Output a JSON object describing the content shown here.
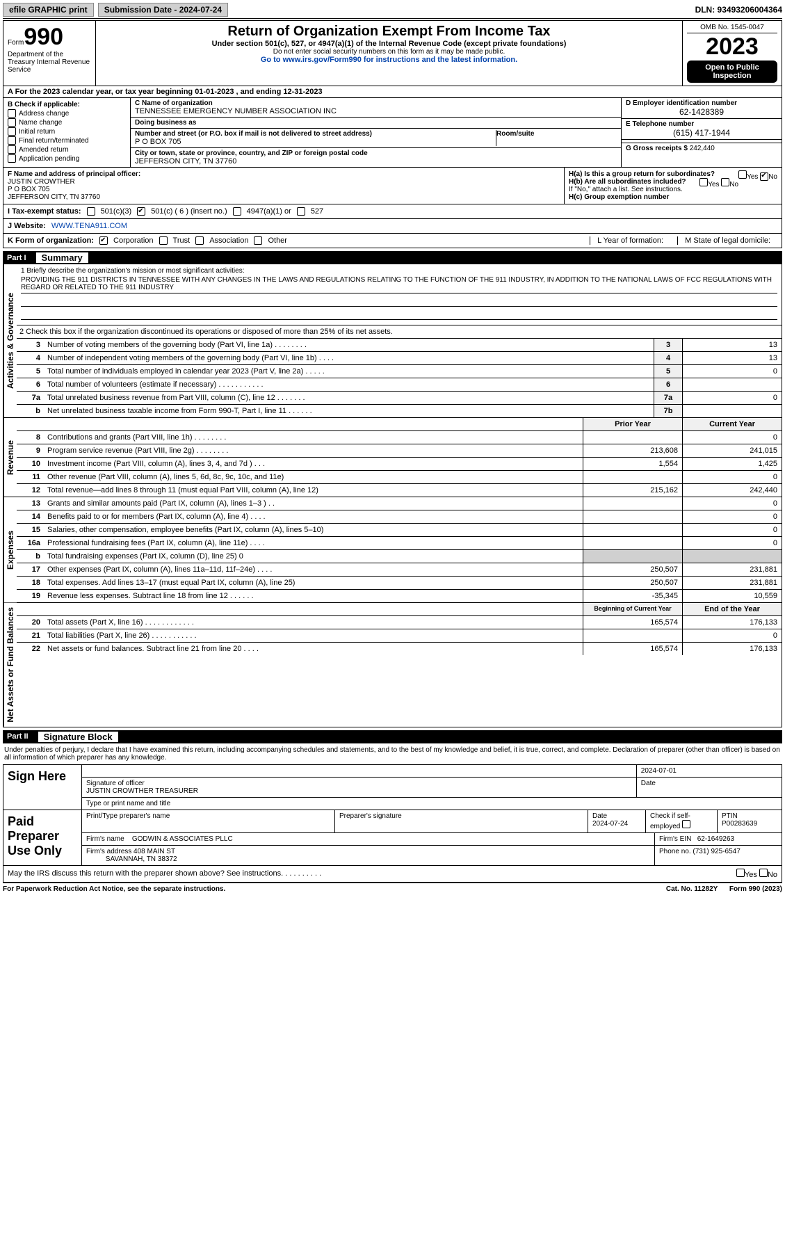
{
  "topbar": {
    "efile": "efile GRAPHIC print",
    "submission_label": "Submission Date - 2024-07-24",
    "dln": "DLN: 93493206004364"
  },
  "header": {
    "form_prefix": "Form",
    "form_number": "990",
    "title": "Return of Organization Exempt From Income Tax",
    "subtitle": "Under section 501(c), 527, or 4947(a)(1) of the Internal Revenue Code (except private foundations)",
    "note": "Do not enter social security numbers on this form as it may be made public.",
    "goto": "Go to www.irs.gov/Form990 for instructions and the latest information.",
    "omb": "OMB No. 1545-0047",
    "year": "2023",
    "open": "Open to Public Inspection",
    "dept": "Department of the Treasury Internal Revenue Service"
  },
  "lineA": "A  For the 2023 calendar year, or tax year beginning 01-01-2023   , and ending 12-31-2023",
  "sectionB": {
    "label": "B Check if applicable:",
    "opts": [
      "Address change",
      "Name change",
      "Initial return",
      "Final return/terminated",
      "Amended return",
      "Application pending"
    ]
  },
  "sectionC": {
    "name_label": "C Name of organization",
    "name": "TENNESSEE EMERGENCY NUMBER ASSOCIATION INC",
    "dba_label": "Doing business as",
    "street_label": "Number and street (or P.O. box if mail is not delivered to street address)",
    "room_label": "Room/suite",
    "street": "P O BOX 705",
    "city_label": "City or town, state or province, country, and ZIP or foreign postal code",
    "city": "JEFFERSON CITY, TN  37760"
  },
  "sectionD": {
    "ein_label": "D Employer identification number",
    "ein": "62-1428389",
    "tel_label": "E Telephone number",
    "tel": "(615) 417-1944",
    "gross_label": "G Gross receipts $",
    "gross": "242,440"
  },
  "sectionF": {
    "label": "F  Name and address of principal officer:",
    "name": "JUSTIN CROWTHER",
    "addr1": "P O BOX 705",
    "addr2": "JEFFERSON CITY, TN  37760"
  },
  "sectionH": {
    "ha": "H(a)  Is this a group return for subordinates?",
    "ha_no": "No",
    "hb": "H(b)  Are all subordinates included?",
    "hb_note": "If \"No,\" attach a list. See instructions.",
    "hc": "H(c)  Group exemption number"
  },
  "lineI": {
    "label": "I  Tax-exempt status:",
    "opts": [
      "501(c)(3)",
      "501(c) ( 6 ) (insert no.)",
      "4947(a)(1) or",
      "527"
    ],
    "checked_index": 1
  },
  "lineJ": {
    "label": "J  Website:",
    "val": "WWW.TENA911.COM"
  },
  "lineK": {
    "label": "K Form of organization:",
    "opts": [
      "Corporation",
      "Trust",
      "Association",
      "Other"
    ],
    "checked_index": 0,
    "year_label": "L Year of formation:",
    "state_label": "M State of legal domicile:"
  },
  "part1": {
    "no": "Part I",
    "title": "Summary"
  },
  "mission": {
    "q": "1  Briefly describe the organization's mission or most significant activities:",
    "text": "PROVIDING THE 911 DISTRICTS IN TENNESSEE WITH ANY CHANGES IN THE LAWS AND REGULATIONS RELATING TO THE FUNCTION OF THE 911 INDUSTRY, IN ADDITION TO THE NATIONAL LAWS OF FCC REGULATIONS WITH REGARD OR RELATED TO THE 911 INDUSTRY"
  },
  "line2": "2  Check this box        if the organization discontinued its operations or disposed of more than 25% of its net assets.",
  "vtabs": {
    "gov": "Activities & Governance",
    "rev": "Revenue",
    "exp": "Expenses",
    "net": "Net Assets or Fund Balances"
  },
  "gov_lines": [
    {
      "n": "3",
      "t": "Number of voting members of the governing body (Part VI, line 1a)   .    .    .    .    .    .    .    .",
      "box": "3",
      "v": "13"
    },
    {
      "n": "4",
      "t": "Number of independent voting members of the governing body (Part VI, line 1b)    .    .    .    .",
      "box": "4",
      "v": "13"
    },
    {
      "n": "5",
      "t": "Total number of individuals employed in calendar year 2023 (Part V, line 2a)   .    .    .    .    .",
      "box": "5",
      "v": "0"
    },
    {
      "n": "6",
      "t": "Total number of volunteers (estimate if necessary)    .    .    .    .    .    .    .    .    .    .    .",
      "box": "6",
      "v": ""
    },
    {
      "n": "7a",
      "t": "Total unrelated business revenue from Part VIII, column (C), line 12   .    .    .    .    .    .    .",
      "box": "7a",
      "v": "0"
    },
    {
      "n": "  b",
      "t": "Net unrelated business taxable income from Form 990-T, Part I, line 11   .    .    .    .    .    .",
      "box": "7b",
      "v": ""
    }
  ],
  "year_hdr": {
    "prior": "Prior Year",
    "curr": "Current Year"
  },
  "rev_lines": [
    {
      "n": "8",
      "t": "Contributions and grants (Part VIII, line 1h)   .    .    .    .    .    .    .    .",
      "p": "",
      "c": "0"
    },
    {
      "n": "9",
      "t": "Program service revenue (Part VIII, line 2g)    .    .    .    .    .    .    .    .",
      "p": "213,608",
      "c": "241,015"
    },
    {
      "n": "10",
      "t": "Investment income (Part VIII, column (A), lines 3, 4, and 7d )    .    .    .",
      "p": "1,554",
      "c": "1,425"
    },
    {
      "n": "11",
      "t": "Other revenue (Part VIII, column (A), lines 5, 6d, 8c, 9c, 10c, and 11e)",
      "p": "",
      "c": "0"
    },
    {
      "n": "12",
      "t": "Total revenue—add lines 8 through 11 (must equal Part VIII, column (A), line 12)",
      "p": "215,162",
      "c": "242,440"
    }
  ],
  "exp_lines": [
    {
      "n": "13",
      "t": "Grants and similar amounts paid (Part IX, column (A), lines 1–3 )   .    .",
      "p": "",
      "c": "0"
    },
    {
      "n": "14",
      "t": "Benefits paid to or for members (Part IX, column (A), line 4)   .    .    .    .",
      "p": "",
      "c": "0"
    },
    {
      "n": "15",
      "t": "Salaries, other compensation, employee benefits (Part IX, column (A), lines 5–10)",
      "p": "",
      "c": "0"
    },
    {
      "n": "16a",
      "t": "Professional fundraising fees (Part IX, column (A), line 11e)   .    .    .    .",
      "p": "",
      "c": "0"
    },
    {
      "n": "  b",
      "t": "Total fundraising expenses (Part IX, column (D), line 25) 0",
      "p": "shade",
      "c": "shade"
    },
    {
      "n": "17",
      "t": "Other expenses (Part IX, column (A), lines 11a–11d, 11f–24e)   .    .    .    .",
      "p": "250,507",
      "c": "231,881"
    },
    {
      "n": "18",
      "t": "Total expenses. Add lines 13–17 (must equal Part IX, column (A), line 25)",
      "p": "250,507",
      "c": "231,881"
    },
    {
      "n": "19",
      "t": "Revenue less expenses. Subtract line 18 from line 12   .    .    .    .    .    .",
      "p": "-35,345",
      "c": "10,559"
    }
  ],
  "net_hdr": {
    "beg": "Beginning of Current Year",
    "end": "End of the Year"
  },
  "net_lines": [
    {
      "n": "20",
      "t": "Total assets (Part X, line 16)   .    .    .    .    .    .    .    .    .    .    .    .",
      "p": "165,574",
      "c": "176,133"
    },
    {
      "n": "21",
      "t": "Total liabilities (Part X, line 26)   .    .    .    .    .    .    .    .    .    .    .",
      "p": "",
      "c": "0"
    },
    {
      "n": "22",
      "t": "Net assets or fund balances. Subtract line 21 from line 20   .    .    .    .",
      "p": "165,574",
      "c": "176,133"
    }
  ],
  "part2": {
    "no": "Part II",
    "title": "Signature Block"
  },
  "sig_decl": "Under penalties of perjury, I declare that I have examined this return, including accompanying schedules and statements, and to the best of my knowledge and belief, it is true, correct, and complete. Declaration of preparer (other than officer) is based on all information of which preparer has any knowledge.",
  "sign_here": {
    "label": "Sign Here",
    "date": "2024-07-01",
    "officer_sig_label": "Signature of officer",
    "officer": "JUSTIN CROWTHER TREASURER",
    "type_label": "Type or print name and title",
    "date_label": "Date"
  },
  "paid": {
    "label": "Paid Preparer Use Only",
    "cols": [
      "Print/Type preparer's name",
      "Preparer's signature",
      "Date",
      "Check        if self-employed",
      "PTIN"
    ],
    "date": "2024-07-24",
    "ptin": "P00283639",
    "firm_name_label": "Firm's name",
    "firm_name": "GODWIN & ASSOCIATES PLLC",
    "firm_ein_label": "Firm's EIN",
    "firm_ein": "62-1649263",
    "firm_addr_label": "Firm's address",
    "firm_addr": "408 MAIN ST",
    "firm_city": "SAVANNAH, TN  38372",
    "phone_label": "Phone no.",
    "phone": "(731) 925-6547"
  },
  "may_irs": "May the IRS discuss this return with the preparer shown above? See instructions.  .    .    .    .    .    .    .    .    .",
  "footer": {
    "left": "For Paperwork Reduction Act Notice, see the separate instructions.",
    "mid": "Cat. No. 11282Y",
    "right": "Form 990 (2023)"
  }
}
